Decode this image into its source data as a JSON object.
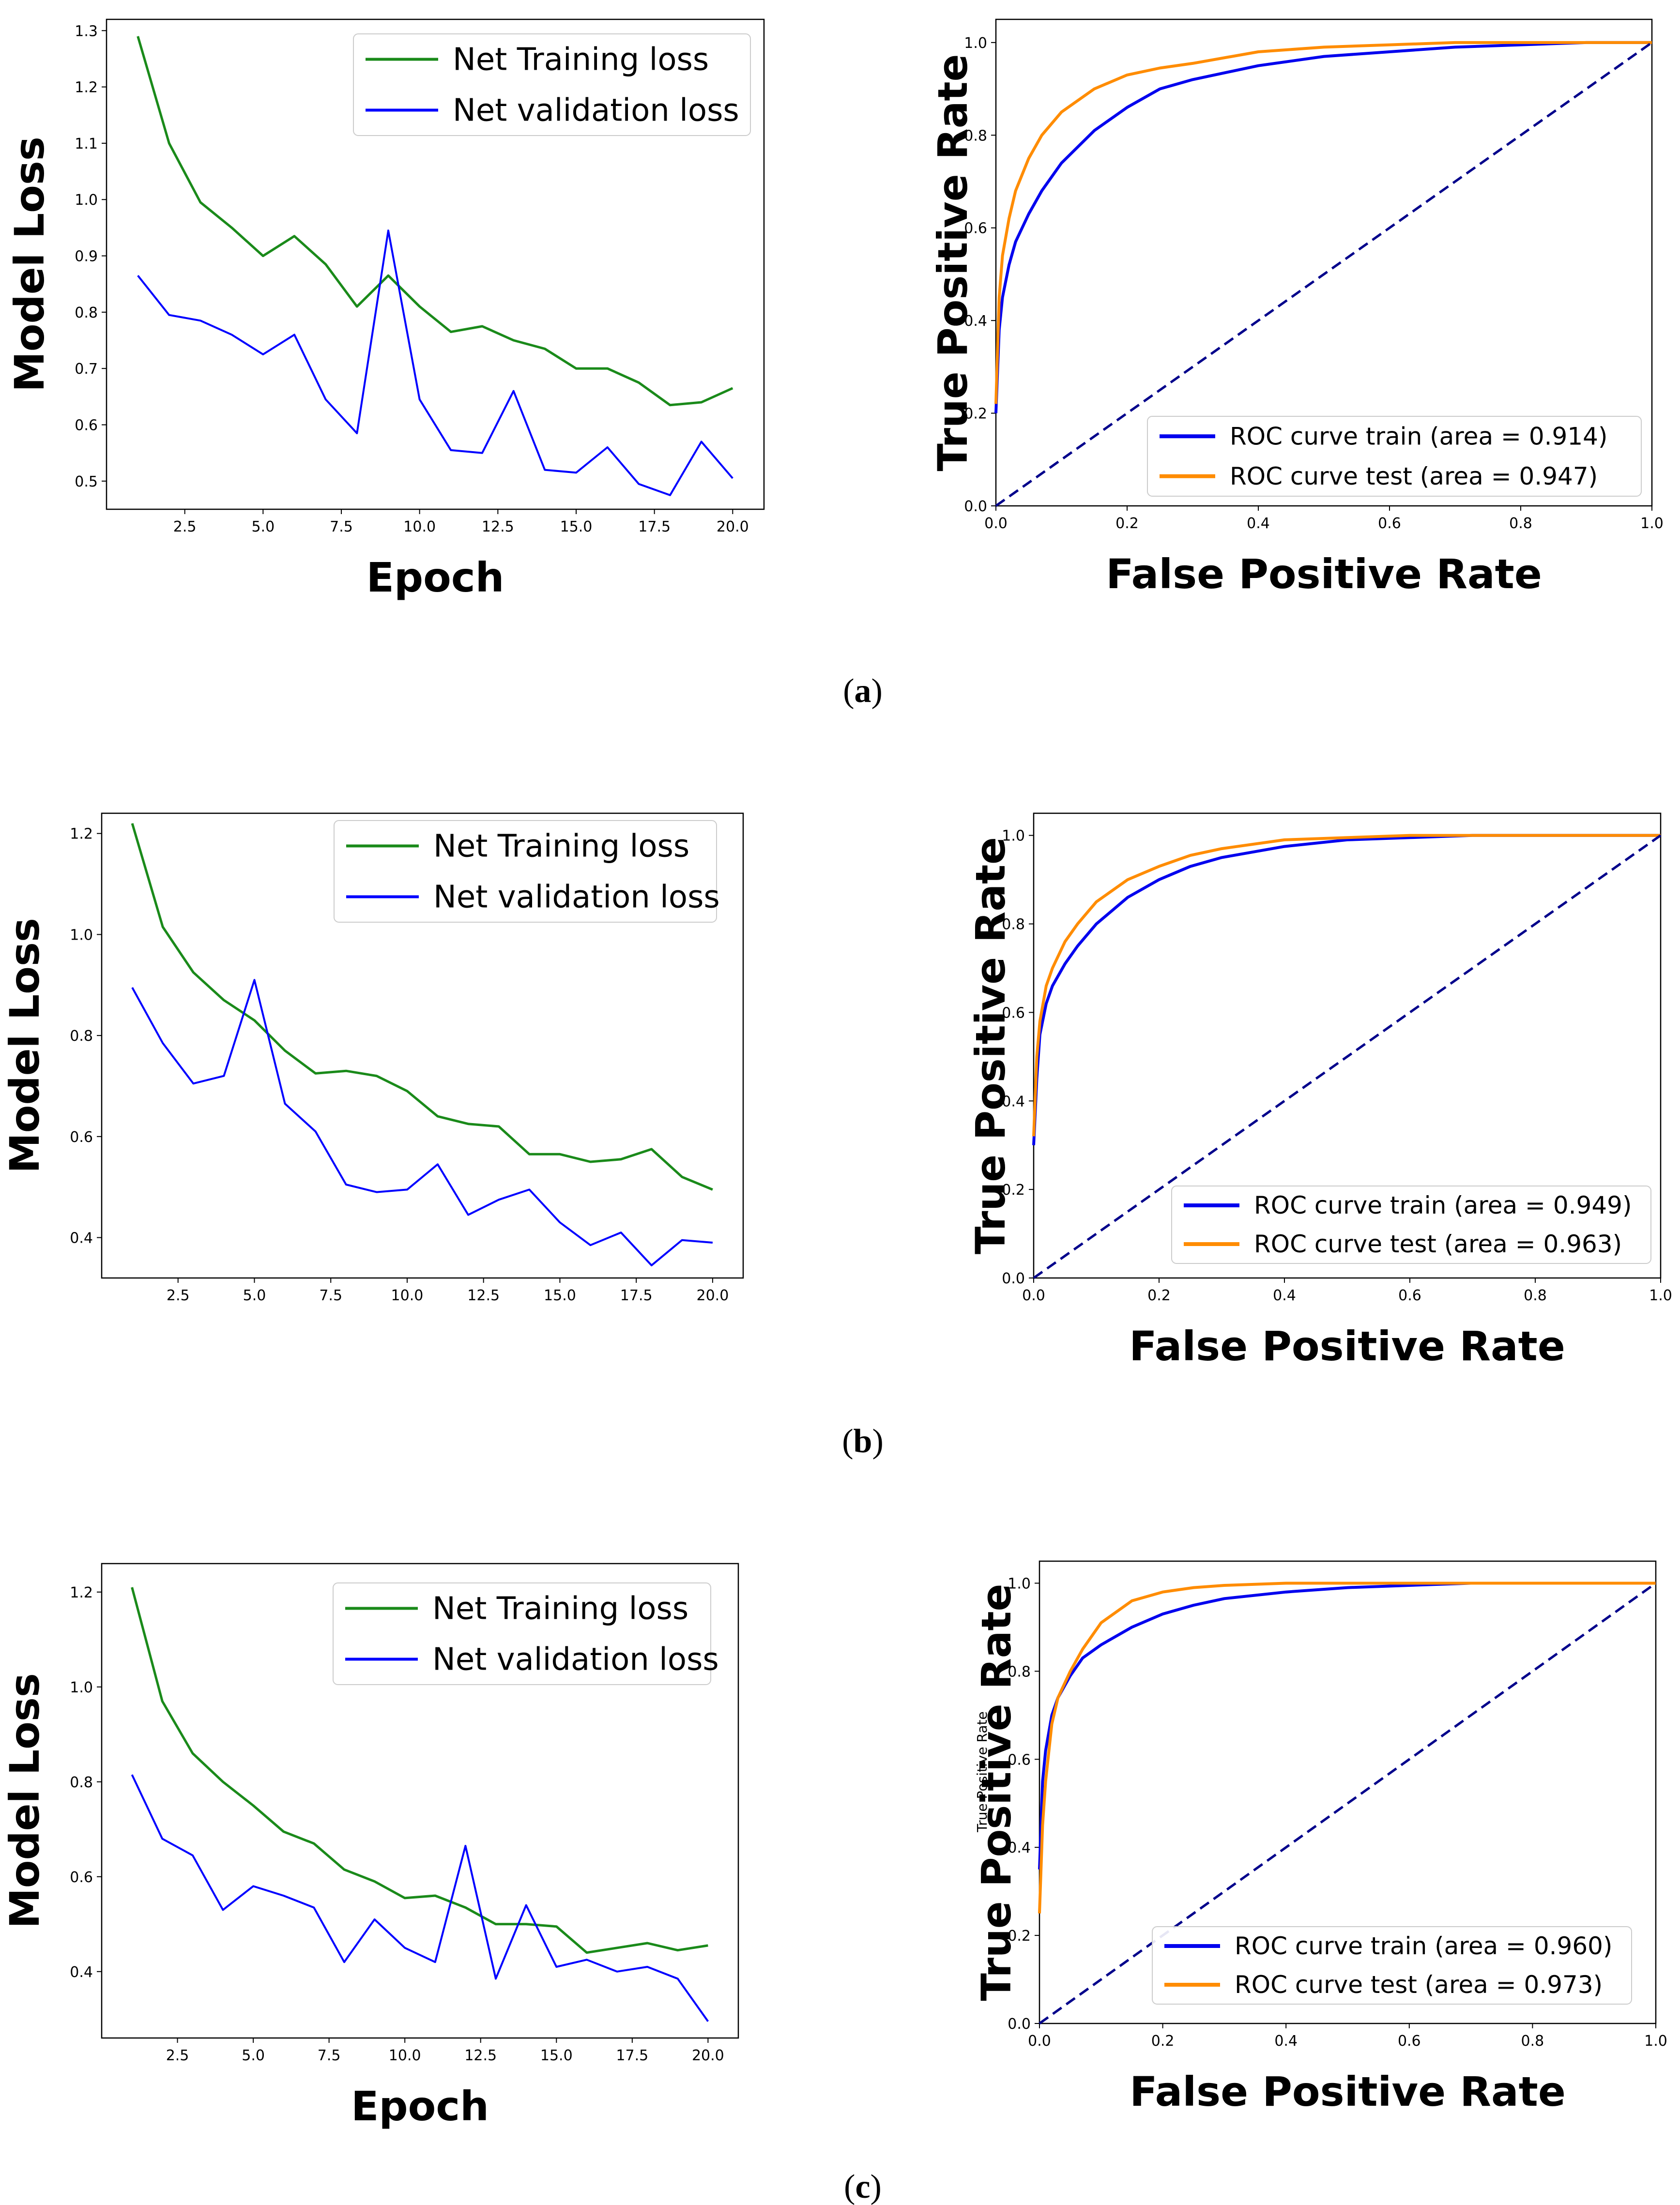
{
  "colors": {
    "training": "#1a8a1a",
    "validation": "#0000ff",
    "roc_train": "#0000ee",
    "roc_test": "#ff8c00",
    "diagonal": "#00008b"
  },
  "captions": [
    "a",
    "b",
    "c"
  ],
  "stray_label": "True Positive Rate",
  "chart_data": [
    {
      "id": "a-loss",
      "type": "line",
      "xlabel": "Epoch",
      "ylabel": "Model Loss",
      "xlim": [
        0,
        21
      ],
      "ylim": [
        0.45,
        1.32
      ],
      "xticks": [
        2.5,
        5.0,
        7.5,
        10.0,
        12.5,
        15.0,
        17.5,
        20.0
      ],
      "xtick_labels": [
        "2.5",
        "5.0",
        "7.5",
        "10.0",
        "12.5",
        "15.0",
        "17.5",
        "20.0"
      ],
      "yticks": [
        0.5,
        0.6,
        0.7,
        0.8,
        0.9,
        1.0,
        1.1,
        1.2,
        1.3
      ],
      "ytick_labels": [
        "0.5",
        "0.6",
        "0.7",
        "0.8",
        "0.9",
        "1.0",
        "1.1",
        "1.2",
        "1.3"
      ],
      "x": [
        1,
        2,
        3,
        4,
        5,
        6,
        7,
        8,
        9,
        10,
        11,
        12,
        13,
        14,
        15,
        16,
        17,
        18,
        19,
        20
      ],
      "series": [
        {
          "name": "Net Training loss",
          "values": [
            1.29,
            1.1,
            0.995,
            0.95,
            0.9,
            0.935,
            0.885,
            0.81,
            0.865,
            0.81,
            0.765,
            0.775,
            0.75,
            0.735,
            0.7,
            0.7,
            0.675,
            0.635,
            0.64,
            0.665
          ]
        },
        {
          "name": "Net validation loss",
          "values": [
            0.865,
            0.795,
            0.785,
            0.76,
            0.725,
            0.76,
            0.645,
            0.585,
            0.945,
            0.645,
            0.555,
            0.55,
            0.66,
            0.52,
            0.515,
            0.56,
            0.495,
            0.475,
            0.57,
            0.505
          ]
        }
      ]
    },
    {
      "id": "a-roc",
      "type": "line",
      "xlabel": "False Positive Rate",
      "ylabel": "True Positive Rate",
      "xlim": [
        0,
        1
      ],
      "ylim": [
        0,
        1.05
      ],
      "ticks": [
        0.0,
        0.2,
        0.4,
        0.6,
        0.8,
        1.0
      ],
      "tick_labels": [
        "0.0",
        "0.2",
        "0.4",
        "0.6",
        "0.8",
        "1.0"
      ],
      "series": [
        {
          "name": "ROC curve train (area = 0.914)",
          "x": [
            0,
            0.005,
            0.01,
            0.02,
            0.03,
            0.05,
            0.07,
            0.1,
            0.15,
            0.2,
            0.25,
            0.3,
            0.4,
            0.5,
            0.6,
            0.7,
            0.8,
            0.9,
            1.0
          ],
          "y": [
            0.2,
            0.38,
            0.45,
            0.52,
            0.57,
            0.63,
            0.68,
            0.74,
            0.81,
            0.86,
            0.9,
            0.92,
            0.95,
            0.97,
            0.98,
            0.99,
            0.995,
            1.0,
            1.0
          ]
        },
        {
          "name": "ROC curve test (area = 0.947)",
          "x": [
            0,
            0.005,
            0.01,
            0.02,
            0.03,
            0.05,
            0.07,
            0.1,
            0.15,
            0.2,
            0.25,
            0.3,
            0.4,
            0.5,
            0.6,
            0.7,
            0.8,
            0.9,
            1.0
          ],
          "y": [
            0.22,
            0.45,
            0.54,
            0.62,
            0.68,
            0.75,
            0.8,
            0.85,
            0.9,
            0.93,
            0.945,
            0.955,
            0.98,
            0.99,
            0.995,
            1.0,
            1.0,
            1.0,
            1.0
          ]
        },
        {
          "name": "chance",
          "x": [
            0,
            1
          ],
          "y": [
            0,
            1
          ]
        }
      ]
    },
    {
      "id": "b-loss",
      "type": "line",
      "xlabel": "",
      "ylabel": "Model Loss",
      "xlim": [
        0,
        21
      ],
      "ylim": [
        0.32,
        1.24
      ],
      "xticks": [
        2.5,
        5.0,
        7.5,
        10.0,
        12.5,
        15.0,
        17.5,
        20.0
      ],
      "xtick_labels": [
        "2.5",
        "5.0",
        "7.5",
        "10.0",
        "12.5",
        "15.0",
        "17.5",
        "20.0"
      ],
      "yticks": [
        0.4,
        0.6,
        0.8,
        1.0,
        1.2
      ],
      "ytick_labels": [
        "0.4",
        "0.6",
        "0.8",
        "1.0",
        "1.2"
      ],
      "x": [
        1,
        2,
        3,
        4,
        5,
        6,
        7,
        8,
        9,
        10,
        11,
        12,
        13,
        14,
        15,
        16,
        17,
        18,
        19,
        20
      ],
      "series": [
        {
          "name": "Net Training loss",
          "values": [
            1.22,
            1.015,
            0.925,
            0.87,
            0.83,
            0.77,
            0.725,
            0.73,
            0.72,
            0.69,
            0.64,
            0.625,
            0.62,
            0.565,
            0.565,
            0.55,
            0.555,
            0.575,
            0.52,
            0.495
          ]
        },
        {
          "name": "Net validation loss",
          "values": [
            0.895,
            0.785,
            0.705,
            0.72,
            0.91,
            0.665,
            0.61,
            0.505,
            0.49,
            0.495,
            0.545,
            0.445,
            0.475,
            0.495,
            0.43,
            0.385,
            0.41,
            0.345,
            0.395,
            0.39
          ]
        }
      ]
    },
    {
      "id": "b-roc",
      "type": "line",
      "xlabel": "False Positive Rate",
      "ylabel": "True Positive Rate",
      "xlim": [
        0,
        1
      ],
      "ylim": [
        0,
        1.05
      ],
      "ticks": [
        0.0,
        0.2,
        0.4,
        0.6,
        0.8,
        1.0
      ],
      "tick_labels": [
        "0.0",
        "0.2",
        "0.4",
        "0.6",
        "0.8",
        "1.0"
      ],
      "series": [
        {
          "name": "ROC curve train (area = 0.949)",
          "x": [
            0,
            0.005,
            0.01,
            0.02,
            0.03,
            0.05,
            0.07,
            0.1,
            0.15,
            0.2,
            0.25,
            0.3,
            0.4,
            0.5,
            0.6,
            0.7,
            0.8,
            0.9,
            1.0
          ],
          "y": [
            0.3,
            0.45,
            0.55,
            0.62,
            0.66,
            0.71,
            0.75,
            0.8,
            0.86,
            0.9,
            0.93,
            0.95,
            0.975,
            0.99,
            0.995,
            1.0,
            1.0,
            1.0,
            1.0
          ]
        },
        {
          "name": "ROC curve test (area = 0.963)",
          "x": [
            0,
            0.005,
            0.01,
            0.02,
            0.03,
            0.05,
            0.07,
            0.1,
            0.15,
            0.2,
            0.25,
            0.3,
            0.4,
            0.5,
            0.6,
            0.7,
            0.8,
            0.9,
            1.0
          ],
          "y": [
            0.32,
            0.5,
            0.58,
            0.66,
            0.7,
            0.76,
            0.8,
            0.85,
            0.9,
            0.93,
            0.955,
            0.97,
            0.99,
            0.995,
            1.0,
            1.0,
            1.0,
            1.0,
            1.0
          ]
        },
        {
          "name": "chance",
          "x": [
            0,
            1
          ],
          "y": [
            0,
            1
          ]
        }
      ]
    },
    {
      "id": "c-loss",
      "type": "line",
      "xlabel": "Epoch",
      "ylabel": "Model Loss",
      "xlim": [
        0,
        21
      ],
      "ylim": [
        0.26,
        1.26
      ],
      "xticks": [
        2.5,
        5.0,
        7.5,
        10.0,
        12.5,
        15.0,
        17.5,
        20.0
      ],
      "xtick_labels": [
        "2.5",
        "5.0",
        "7.5",
        "10.0",
        "12.5",
        "15.0",
        "17.5",
        "20.0"
      ],
      "yticks": [
        0.4,
        0.6,
        0.8,
        1.0,
        1.2
      ],
      "ytick_labels": [
        "0.4",
        "0.6",
        "0.8",
        "1.0",
        "1.2"
      ],
      "x": [
        1,
        2,
        3,
        4,
        5,
        6,
        7,
        8,
        9,
        10,
        11,
        12,
        13,
        14,
        15,
        16,
        17,
        18,
        19,
        20
      ],
      "series": [
        {
          "name": "Net Training loss",
          "values": [
            1.21,
            0.97,
            0.86,
            0.8,
            0.75,
            0.695,
            0.67,
            0.615,
            0.59,
            0.555,
            0.56,
            0.535,
            0.5,
            0.5,
            0.495,
            0.44,
            0.45,
            0.46,
            0.445,
            0.455
          ]
        },
        {
          "name": "Net validation loss",
          "values": [
            0.815,
            0.68,
            0.645,
            0.53,
            0.58,
            0.56,
            0.535,
            0.42,
            0.51,
            0.45,
            0.42,
            0.665,
            0.385,
            0.54,
            0.41,
            0.425,
            0.4,
            0.41,
            0.385,
            0.295
          ]
        }
      ]
    },
    {
      "id": "c-roc",
      "type": "line",
      "xlabel": "False Positive Rate",
      "ylabel": "True Positive Rate",
      "xlim": [
        0,
        1
      ],
      "ylim": [
        0,
        1.05
      ],
      "ticks": [
        0.0,
        0.2,
        0.4,
        0.6,
        0.8,
        1.0
      ],
      "tick_labels": [
        "0.0",
        "0.2",
        "0.4",
        "0.6",
        "0.8",
        "1.0"
      ],
      "series": [
        {
          "name": "ROC curve train (area = 0.960)",
          "x": [
            0,
            0.005,
            0.01,
            0.02,
            0.03,
            0.05,
            0.07,
            0.1,
            0.15,
            0.2,
            0.25,
            0.3,
            0.4,
            0.5,
            0.6,
            0.7,
            0.8,
            0.9,
            1.0
          ],
          "y": [
            0.35,
            0.55,
            0.62,
            0.7,
            0.74,
            0.79,
            0.83,
            0.86,
            0.9,
            0.93,
            0.95,
            0.965,
            0.98,
            0.99,
            0.995,
            1.0,
            1.0,
            1.0,
            1.0
          ]
        },
        {
          "name": "ROC curve test (area = 0.973)",
          "x": [
            0,
            0.005,
            0.01,
            0.02,
            0.03,
            0.05,
            0.07,
            0.1,
            0.15,
            0.2,
            0.25,
            0.3,
            0.4,
            0.5,
            0.6,
            0.7,
            0.8,
            0.9,
            1.0
          ],
          "y": [
            0.25,
            0.45,
            0.55,
            0.68,
            0.74,
            0.8,
            0.85,
            0.91,
            0.96,
            0.98,
            0.99,
            0.995,
            1.0,
            1.0,
            1.0,
            1.0,
            1.0,
            1.0,
            1.0
          ]
        },
        {
          "name": "chance",
          "x": [
            0,
            1
          ],
          "y": [
            0,
            1
          ]
        }
      ]
    }
  ]
}
